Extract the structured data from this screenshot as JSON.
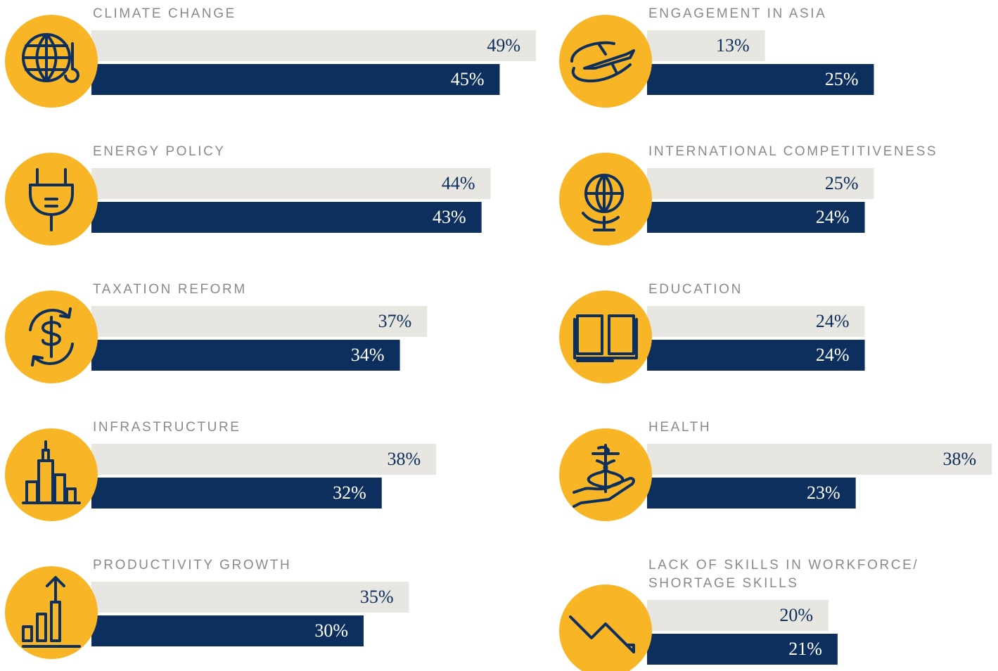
{
  "chart_data": [
    {
      "type": "bar",
      "title": "CLIMATE CHANGE",
      "series": [
        {
          "color": "#e7e6e1",
          "values": [
            49
          ],
          "value_labels": [
            "49%"
          ]
        },
        {
          "color": "#0d2f5e",
          "values": [
            45
          ],
          "value_labels": [
            "45%"
          ]
        }
      ]
    },
    {
      "type": "bar",
      "title": "ENERGY POLICY",
      "series": [
        {
          "color": "#e7e6e1",
          "values": [
            44
          ],
          "value_labels": [
            "44%"
          ]
        },
        {
          "color": "#0d2f5e",
          "values": [
            43
          ],
          "value_labels": [
            "43%"
          ]
        }
      ]
    },
    {
      "type": "bar",
      "title": "TAXATION REFORM",
      "series": [
        {
          "color": "#e7e6e1",
          "values": [
            37
          ],
          "value_labels": [
            "37%"
          ]
        },
        {
          "color": "#0d2f5e",
          "values": [
            34
          ],
          "value_labels": [
            "34%"
          ]
        }
      ]
    },
    {
      "type": "bar",
      "title": "INFRASTRUCTURE",
      "series": [
        {
          "color": "#e7e6e1",
          "values": [
            38
          ],
          "value_labels": [
            "38%"
          ]
        },
        {
          "color": "#0d2f5e",
          "values": [
            32
          ],
          "value_labels": [
            "32%"
          ]
        }
      ]
    },
    {
      "type": "bar",
      "title": "PRODUCTIVITY GROWTH",
      "series": [
        {
          "color": "#e7e6e1",
          "values": [
            35
          ],
          "value_labels": [
            "35%"
          ]
        },
        {
          "color": "#0d2f5e",
          "values": [
            30
          ],
          "value_labels": [
            "30%"
          ]
        }
      ]
    },
    {
      "type": "bar",
      "title": "ENGAGEMENT IN ASIA",
      "series": [
        {
          "color": "#e7e6e1",
          "values": [
            13
          ],
          "value_labels": [
            "13%"
          ]
        },
        {
          "color": "#0d2f5e",
          "values": [
            25
          ],
          "value_labels": [
            "25%"
          ]
        }
      ]
    },
    {
      "type": "bar",
      "title": "INTERNATIONAL COMPETITIVENESS",
      "series": [
        {
          "color": "#e7e6e1",
          "values": [
            25
          ],
          "value_labels": [
            "25%"
          ]
        },
        {
          "color": "#0d2f5e",
          "values": [
            24
          ],
          "value_labels": [
            "24%"
          ]
        }
      ]
    },
    {
      "type": "bar",
      "title": "EDUCATION",
      "series": [
        {
          "color": "#e7e6e1",
          "values": [
            24
          ],
          "value_labels": [
            "24%"
          ]
        },
        {
          "color": "#0d2f5e",
          "values": [
            24
          ],
          "value_labels": [
            "24%"
          ]
        }
      ]
    },
    {
      "type": "bar",
      "title": "HEALTH",
      "series": [
        {
          "color": "#e7e6e1",
          "values": [
            38
          ],
          "value_labels": [
            "38%"
          ]
        },
        {
          "color": "#0d2f5e",
          "values": [
            23
          ],
          "value_labels": [
            "23%"
          ]
        }
      ]
    },
    {
      "type": "bar",
      "title": "LACK OF SKILLS IN WORKFORCE/\nSHORTAGE SKILLS",
      "series": [
        {
          "color": "#e7e6e1",
          "values": [
            20
          ],
          "value_labels": [
            "20%"
          ]
        },
        {
          "color": "#0d2f5e",
          "values": [
            21
          ],
          "value_labels": [
            "21%"
          ]
        }
      ]
    }
  ]
}
